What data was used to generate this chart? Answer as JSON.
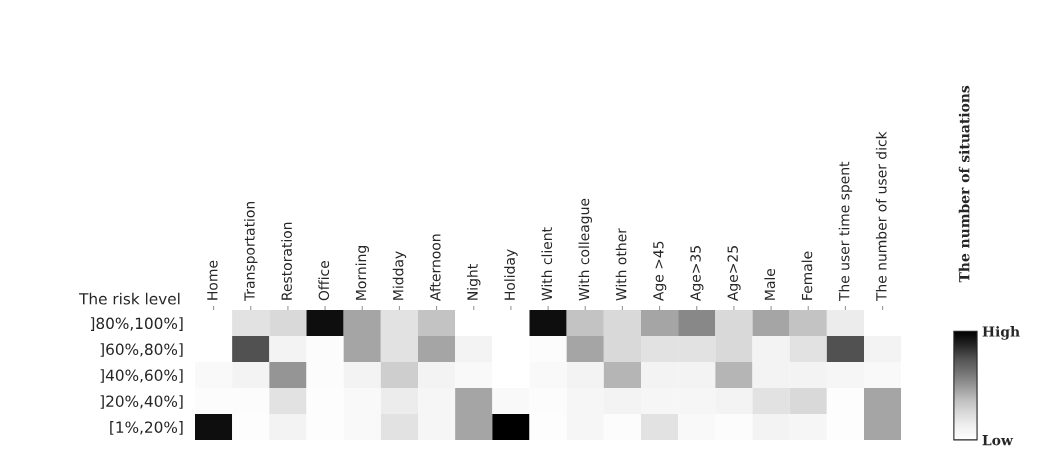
{
  "chart_data": {
    "type": "heatmap",
    "ylabel": "The risk level",
    "clabel": "The number of situations",
    "categories": [
      "Home",
      "Transportation",
      "Restoration",
      "Office",
      "Morning",
      "Midday",
      "Afternoon",
      "Night",
      "Holiday",
      "With client",
      "With colleague",
      "With other",
      "Age >45",
      "Age>35",
      "Age>25",
      "Male",
      "Female",
      "The user time spent",
      "The number of user dick"
    ],
    "y_categories": [
      "]80%,100%]",
      "]60%,80%]",
      "]40%,60%]",
      "]20%,40%]",
      "[1%,20%]"
    ],
    "cells": [
      [
        0,
        0.2,
        0.25,
        0.95,
        0.45,
        0.2,
        0.35,
        0,
        0,
        0.95,
        0.35,
        0.25,
        0.45,
        0.55,
        0.25,
        0.45,
        0.35,
        0.15,
        0
      ],
      [
        0,
        0.75,
        0.1,
        0.03,
        0.45,
        0.2,
        0.45,
        0.1,
        0,
        0.03,
        0.45,
        0.25,
        0.2,
        0.2,
        0.25,
        0.1,
        0.2,
        0.75,
        0.1
      ],
      [
        0.05,
        0.1,
        0.5,
        0.03,
        0.1,
        0.3,
        0.1,
        0.05,
        0,
        0.05,
        0.1,
        0.4,
        0.1,
        0.1,
        0.4,
        0.1,
        0.1,
        0.08,
        0.05
      ],
      [
        0.03,
        0.03,
        0.2,
        0.02,
        0.05,
        0.15,
        0.08,
        0.45,
        0.05,
        0.03,
        0.08,
        0.1,
        0.08,
        0.08,
        0.1,
        0.2,
        0.25,
        0.02,
        0.45
      ],
      [
        0.95,
        0.02,
        0.1,
        0.02,
        0.05,
        0.2,
        0.08,
        0.45,
        1.0,
        0.02,
        0.08,
        0.03,
        0.2,
        0.05,
        0.03,
        0.1,
        0.08,
        0.02,
        0.45
      ]
    ],
    "clim": [
      0,
      1
    ],
    "cticks": [
      {
        "value": 0,
        "label": "Low"
      },
      {
        "value": 1,
        "label": "High"
      }
    ]
  }
}
